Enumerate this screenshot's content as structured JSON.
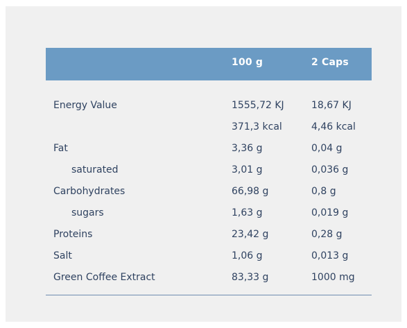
{
  "header": {
    "col_name": "",
    "col_100g": "100 g",
    "col_2caps": "2 Caps"
  },
  "rows": [
    {
      "name": "Energy Value",
      "per100": "1555,72 KJ",
      "per2caps": "18,67 KJ",
      "indent": false
    },
    {
      "name": "",
      "per100": "371,3 kcal",
      "per2caps": "4,46 kcal",
      "indent": false
    },
    {
      "name": "Fat",
      "per100": "3,36 g",
      "per2caps": "0,04 g",
      "indent": false
    },
    {
      "name": "saturated",
      "per100": "3,01 g",
      "per2caps": "0,036 g",
      "indent": true
    },
    {
      "name": "Carbohydrates",
      "per100": "66,98 g",
      "per2caps": "0,8 g",
      "indent": false
    },
    {
      "name": "sugars",
      "per100": "1,63 g",
      "per2caps": "0,019 g",
      "indent": true
    },
    {
      "name": "Proteins",
      "per100": "23,42 g",
      "per2caps": "0,28 g",
      "indent": false
    },
    {
      "name": "Salt",
      "per100": "1,06 g",
      "per2caps": "0,013 g",
      "indent": false
    },
    {
      "name": "Green Coffee Extract",
      "per100": "83,33 g",
      "per2caps": "1000 mg",
      "indent": false
    }
  ]
}
